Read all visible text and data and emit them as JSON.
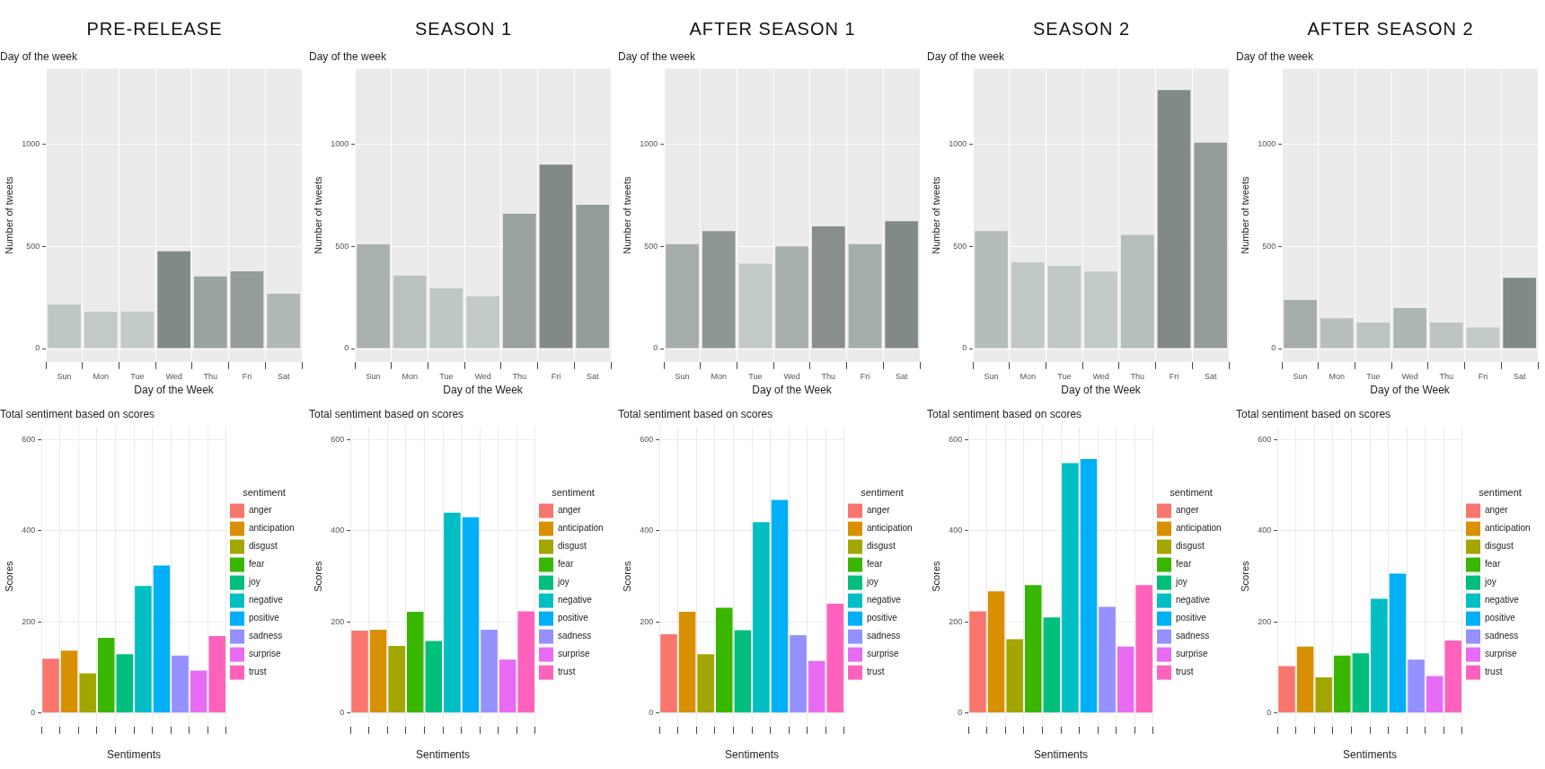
{
  "chart_data": [
    {
      "type": "bar",
      "title": "PRE-RELEASE",
      "subtitle": "Day of the week",
      "xlabel": "Day of the Week",
      "ylabel": "Number of tweets",
      "categories": [
        "Sun",
        "Mon",
        "Tue",
        "Wed",
        "Thu",
        "Fri",
        "Sat"
      ],
      "values": [
        215,
        180,
        181,
        476,
        353,
        378,
        268
      ],
      "colors": [
        "#bdc6c5",
        "#c2cbca",
        "#c2cbca",
        "#818a88",
        "#9aa2a2",
        "#959d9c",
        "#b0b9b8"
      ],
      "ylim": [
        -65,
        1370
      ],
      "yticks": [
        0,
        500,
        1000
      ],
      "grid": true
    },
    {
      "type": "bar",
      "title": "SEASON 1",
      "subtitle": "Day of the week",
      "xlabel": "Day of the Week",
      "ylabel": "Number of tweets",
      "categories": [
        "Sun",
        "Mon",
        "Tue",
        "Wed",
        "Thu",
        "Fri",
        "Sat"
      ],
      "values": [
        510,
        357,
        295,
        255,
        660,
        900,
        703
      ],
      "colors": [
        "#a8b1b0",
        "#b9c2c1",
        "#bec7c6",
        "#c2cbca",
        "#99a1a1",
        "#818a88",
        "#949c9b"
      ],
      "ylim": [
        -65,
        1370
      ],
      "yticks": [
        0,
        500,
        1000
      ],
      "grid": true
    },
    {
      "type": "bar",
      "title": "AFTER SEASON 1",
      "subtitle": "Day of the week",
      "xlabel": "Day of the Week",
      "ylabel": "Number of tweets",
      "categories": [
        "Sun",
        "Mon",
        "Tue",
        "Wed",
        "Thu",
        "Fri",
        "Sat"
      ],
      "values": [
        511,
        575,
        416,
        500,
        598,
        511,
        623
      ],
      "colors": [
        "#a4adac",
        "#8e9696",
        "#c2cbca",
        "#a6afae",
        "#888f8e",
        "#a4adac",
        "#818a88"
      ],
      "ylim": [
        -65,
        1370
      ],
      "yticks": [
        0,
        500,
        1000
      ],
      "grid": true
    },
    {
      "type": "bar",
      "title": "SEASON 2",
      "subtitle": "Day of the week",
      "xlabel": "Day of the Week",
      "ylabel": "Number of tweets",
      "categories": [
        "Sun",
        "Mon",
        "Tue",
        "Wed",
        "Thu",
        "Fri",
        "Sat"
      ],
      "values": [
        575,
        422,
        405,
        377,
        556,
        1265,
        1008
      ],
      "colors": [
        "#b4bdbc",
        "#c0c9c8",
        "#c0c9c8",
        "#c2cbca",
        "#b5bebd",
        "#818a88",
        "#959d9c"
      ],
      "ylim": [
        -65,
        1370
      ],
      "yticks": [
        0,
        500,
        1000
      ],
      "grid": true
    },
    {
      "type": "bar",
      "title": "AFTER SEASON 2",
      "subtitle": "Day of the week",
      "xlabel": "Day of the Week",
      "ylabel": "Number of tweets",
      "categories": [
        "Sun",
        "Mon",
        "Tue",
        "Wed",
        "Thu",
        "Fri",
        "Sat"
      ],
      "values": [
        237,
        148,
        128,
        198,
        128,
        103,
        346
      ],
      "colors": [
        "#a4adac",
        "#b6bfbe",
        "#bcc5c4",
        "#adb6b5",
        "#bcc5c4",
        "#c2cbca",
        "#818a88"
      ],
      "ylim": [
        -65,
        1370
      ],
      "yticks": [
        0,
        500,
        1000
      ],
      "grid": true
    },
    {
      "type": "bar",
      "title": "Total sentiment based on scores",
      "xlabel": "Sentiments",
      "ylabel": "Scores",
      "legend_title": "sentiment",
      "categories": [
        null,
        null,
        null,
        null,
        null,
        null,
        null,
        null,
        null,
        null
      ],
      "stacked": true,
      "ylim": [
        -30,
        630
      ],
      "yticks": [
        0,
        200,
        400,
        600
      ],
      "grid": true,
      "legend": "right",
      "series": [
        {
          "name": "anger",
          "color": "#f8766d",
          "values": [
            119,
            null,
            null,
            null,
            null,
            null,
            null,
            null,
            null,
            null
          ]
        },
        {
          "name": "anticipation",
          "color": "#d89000",
          "values": [
            null,
            137,
            null,
            null,
            null,
            null,
            null,
            null,
            null,
            null
          ]
        },
        {
          "name": "disgust",
          "color": "#a3a500",
          "values": [
            null,
            null,
            87,
            null,
            null,
            null,
            null,
            null,
            null,
            null
          ]
        },
        {
          "name": "fear",
          "color": "#39b600",
          "values": [
            null,
            null,
            null,
            165,
            null,
            null,
            null,
            null,
            null,
            null
          ]
        },
        {
          "name": "joy",
          "color": "#00bf7d",
          "values": [
            null,
            null,
            null,
            null,
            129,
            null,
            null,
            null,
            null,
            null
          ]
        },
        {
          "name": "negative",
          "color": "#00bfc4",
          "values": [
            null,
            null,
            null,
            null,
            null,
            279,
            null,
            null,
            null,
            null
          ]
        },
        {
          "name": "positive",
          "color": "#00b0f6",
          "values": [
            null,
            null,
            null,
            null,
            null,
            null,
            324,
            null,
            null,
            null
          ]
        },
        {
          "name": "sadness",
          "color": "#9590ff",
          "values": [
            null,
            null,
            null,
            null,
            null,
            null,
            null,
            126,
            null,
            null
          ]
        },
        {
          "name": "surprise",
          "color": "#e76bf3",
          "values": [
            null,
            null,
            null,
            null,
            null,
            null,
            null,
            null,
            93,
            null
          ]
        },
        {
          "name": "trust",
          "color": "#ff62bc",
          "values": [
            null,
            null,
            null,
            null,
            null,
            null,
            null,
            null,
            null,
            169
          ]
        }
      ]
    },
    {
      "type": "bar",
      "title": "Total sentiment based on scores",
      "xlabel": "Sentiments",
      "ylabel": "Scores",
      "legend_title": "sentiment",
      "categories": [
        null,
        null,
        null,
        null,
        null,
        null,
        null,
        null,
        null,
        null
      ],
      "stacked": true,
      "ylim": [
        -30,
        630
      ],
      "yticks": [
        0,
        200,
        400,
        600
      ],
      "grid": true,
      "legend": "right",
      "series": [
        {
          "name": "anger",
          "color": "#f8766d",
          "values": [
            181,
            null,
            null,
            null,
            null,
            null,
            null,
            null,
            null,
            null
          ]
        },
        {
          "name": "anticipation",
          "color": "#d89000",
          "values": [
            null,
            183,
            null,
            null,
            null,
            null,
            null,
            null,
            null,
            null
          ]
        },
        {
          "name": "disgust",
          "color": "#a3a500",
          "values": [
            null,
            null,
            147,
            null,
            null,
            null,
            null,
            null,
            null,
            null
          ]
        },
        {
          "name": "fear",
          "color": "#39b600",
          "values": [
            null,
            null,
            null,
            222,
            null,
            null,
            null,
            null,
            null,
            null
          ]
        },
        {
          "name": "joy",
          "color": "#00bf7d",
          "values": [
            null,
            null,
            null,
            null,
            158,
            null,
            null,
            null,
            null,
            null
          ]
        },
        {
          "name": "negative",
          "color": "#00bfc4",
          "values": [
            null,
            null,
            null,
            null,
            null,
            440,
            null,
            null,
            null,
            null
          ]
        },
        {
          "name": "positive",
          "color": "#00b0f6",
          "values": [
            null,
            null,
            null,
            null,
            null,
            null,
            430,
            null,
            null,
            null
          ]
        },
        {
          "name": "sadness",
          "color": "#9590ff",
          "values": [
            null,
            null,
            null,
            null,
            null,
            null,
            null,
            183,
            null,
            null
          ]
        },
        {
          "name": "surprise",
          "color": "#e76bf3",
          "values": [
            null,
            null,
            null,
            null,
            null,
            null,
            null,
            null,
            117,
            null
          ]
        },
        {
          "name": "trust",
          "color": "#ff62bc",
          "values": [
            null,
            null,
            null,
            null,
            null,
            null,
            null,
            null,
            null,
            223
          ]
        }
      ]
    },
    {
      "type": "bar",
      "title": "Total sentiment based on scores",
      "xlabel": "Sentiments",
      "ylabel": "Scores",
      "legend_title": "sentiment",
      "categories": [
        null,
        null,
        null,
        null,
        null,
        null,
        null,
        null,
        null,
        null
      ],
      "stacked": true,
      "ylim": [
        -30,
        630
      ],
      "yticks": [
        0,
        200,
        400,
        600
      ],
      "grid": true,
      "legend": "right",
      "series": [
        {
          "name": "anger",
          "color": "#f8766d",
          "values": [
            173,
            null,
            null,
            null,
            null,
            null,
            null,
            null,
            null,
            null
          ]
        },
        {
          "name": "anticipation",
          "color": "#d89000",
          "values": [
            null,
            222,
            null,
            null,
            null,
            null,
            null,
            null,
            null,
            null
          ]
        },
        {
          "name": "disgust",
          "color": "#a3a500",
          "values": [
            null,
            null,
            129,
            null,
            null,
            null,
            null,
            null,
            null,
            null
          ]
        },
        {
          "name": "fear",
          "color": "#39b600",
          "values": [
            null,
            null,
            null,
            231,
            null,
            null,
            null,
            null,
            null,
            null
          ]
        },
        {
          "name": "joy",
          "color": "#00bf7d",
          "values": [
            null,
            null,
            null,
            null,
            182,
            null,
            null,
            null,
            null,
            null
          ]
        },
        {
          "name": "negative",
          "color": "#00bfc4",
          "values": [
            null,
            null,
            null,
            null,
            null,
            419,
            null,
            null,
            null,
            null
          ]
        },
        {
          "name": "positive",
          "color": "#00b0f6",
          "values": [
            null,
            null,
            null,
            null,
            null,
            null,
            468,
            null,
            null,
            null
          ]
        },
        {
          "name": "sadness",
          "color": "#9590ff",
          "values": [
            null,
            null,
            null,
            null,
            null,
            null,
            null,
            171,
            null,
            null
          ]
        },
        {
          "name": "surprise",
          "color": "#e76bf3",
          "values": [
            null,
            null,
            null,
            null,
            null,
            null,
            null,
            null,
            114,
            null
          ]
        },
        {
          "name": "trust",
          "color": "#ff62bc",
          "values": [
            null,
            null,
            null,
            null,
            null,
            null,
            null,
            null,
            null,
            240
          ]
        }
      ]
    },
    {
      "type": "bar",
      "title": "Total sentiment based on scores",
      "xlabel": "Sentiments",
      "ylabel": "Scores",
      "legend_title": "sentiment",
      "categories": [
        null,
        null,
        null,
        null,
        null,
        null,
        null,
        null,
        null,
        null
      ],
      "stacked": true,
      "ylim": [
        -30,
        630
      ],
      "yticks": [
        0,
        200,
        400,
        600
      ],
      "grid": true,
      "legend": "right",
      "series": [
        {
          "name": "anger",
          "color": "#f8766d",
          "values": [
            223,
            null,
            null,
            null,
            null,
            null,
            null,
            null,
            null,
            null
          ]
        },
        {
          "name": "anticipation",
          "color": "#d89000",
          "values": [
            null,
            267,
            null,
            null,
            null,
            null,
            null,
            null,
            null,
            null
          ]
        },
        {
          "name": "disgust",
          "color": "#a3a500",
          "values": [
            null,
            null,
            162,
            null,
            null,
            null,
            null,
            null,
            null,
            null
          ]
        },
        {
          "name": "fear",
          "color": "#39b600",
          "values": [
            null,
            null,
            null,
            281,
            null,
            null,
            null,
            null,
            null,
            null
          ]
        },
        {
          "name": "joy",
          "color": "#00bf7d",
          "values": [
            null,
            null,
            null,
            null,
            210,
            null,
            null,
            null,
            null,
            null
          ]
        },
        {
          "name": "negative",
          "color": "#00bfc4",
          "values": [
            null,
            null,
            null,
            null,
            null,
            549,
            null,
            null,
            null,
            null
          ]
        },
        {
          "name": "positive",
          "color": "#00b0f6",
          "values": [
            null,
            null,
            null,
            null,
            null,
            null,
            558,
            null,
            null,
            null
          ]
        },
        {
          "name": "sadness",
          "color": "#9590ff",
          "values": [
            null,
            null,
            null,
            null,
            null,
            null,
            null,
            233,
            null,
            null
          ]
        },
        {
          "name": "surprise",
          "color": "#e76bf3",
          "values": [
            null,
            null,
            null,
            null,
            null,
            null,
            null,
            null,
            146,
            null
          ]
        },
        {
          "name": "trust",
          "color": "#ff62bc",
          "values": [
            null,
            null,
            null,
            null,
            null,
            null,
            null,
            null,
            null,
            281
          ]
        }
      ]
    },
    {
      "type": "bar",
      "title": "Total sentiment based on scores",
      "xlabel": "Sentiments",
      "ylabel": "Scores",
      "legend_title": "sentiment",
      "categories": [
        null,
        null,
        null,
        null,
        null,
        null,
        null,
        null,
        null,
        null
      ],
      "stacked": true,
      "ylim": [
        -30,
        630
      ],
      "yticks": [
        0,
        200,
        400,
        600
      ],
      "grid": true,
      "legend": "right",
      "series": [
        {
          "name": "anger",
          "color": "#f8766d",
          "values": [
            103,
            null,
            null,
            null,
            null,
            null,
            null,
            null,
            null,
            null
          ]
        },
        {
          "name": "anticipation",
          "color": "#d89000",
          "values": [
            null,
            146,
            null,
            null,
            null,
            null,
            null,
            null,
            null,
            null
          ]
        },
        {
          "name": "disgust",
          "color": "#a3a500",
          "values": [
            null,
            null,
            78,
            null,
            null,
            null,
            null,
            null,
            null,
            null
          ]
        },
        {
          "name": "fear",
          "color": "#39b600",
          "values": [
            null,
            null,
            null,
            126,
            null,
            null,
            null,
            null,
            null,
            null
          ]
        },
        {
          "name": "joy",
          "color": "#00bf7d",
          "values": [
            null,
            null,
            null,
            null,
            131,
            null,
            null,
            null,
            null,
            null
          ]
        },
        {
          "name": "negative",
          "color": "#00bfc4",
          "values": [
            null,
            null,
            null,
            null,
            null,
            251,
            null,
            null,
            null,
            null
          ]
        },
        {
          "name": "positive",
          "color": "#00b0f6",
          "values": [
            null,
            null,
            null,
            null,
            null,
            null,
            306,
            null,
            null,
            null
          ]
        },
        {
          "name": "sadness",
          "color": "#9590ff",
          "values": [
            null,
            null,
            null,
            null,
            null,
            null,
            null,
            117,
            null,
            null
          ]
        },
        {
          "name": "surprise",
          "color": "#e76bf3",
          "values": [
            null,
            null,
            null,
            null,
            null,
            null,
            null,
            null,
            81,
            null
          ]
        },
        {
          "name": "trust",
          "color": "#ff62bc",
          "values": [
            null,
            null,
            null,
            null,
            null,
            null,
            null,
            null,
            null,
            159
          ]
        }
      ]
    }
  ]
}
